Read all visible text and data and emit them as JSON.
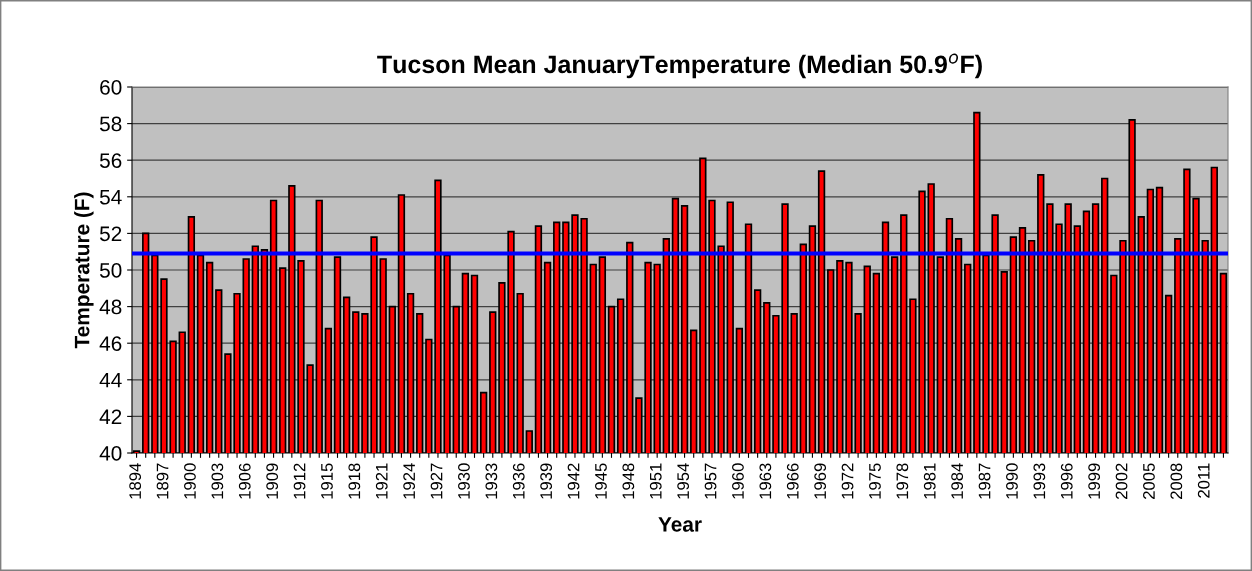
{
  "chart_data": {
    "type": "bar",
    "title": "Tucson Mean JanuaryTemperature (Median 50.9$^{o}$F)",
    "xlabel": "Year",
    "ylabel": "Temperature (F)",
    "categories": [
      "1894",
      null,
      null,
      "1897",
      null,
      null,
      "1900",
      null,
      null,
      "1903",
      null,
      null,
      "1906",
      null,
      null,
      "1909",
      null,
      null,
      "1912",
      null,
      null,
      "1915",
      null,
      null,
      "1918",
      null,
      null,
      "1921",
      null,
      null,
      "1924",
      null,
      null,
      "1927",
      null,
      null,
      "1930",
      null,
      null,
      "1933",
      null,
      null,
      "1936",
      null,
      null,
      "1939",
      null,
      null,
      "1942",
      null,
      null,
      "1945",
      null,
      null,
      "1948",
      null,
      null,
      "1951",
      null,
      null,
      "1954",
      null,
      null,
      "1957",
      null,
      null,
      "1960",
      null,
      null,
      "1963",
      null,
      null,
      "1966",
      null,
      null,
      "1969",
      null,
      null,
      "1972",
      null,
      null,
      "1975",
      null,
      null,
      "1978",
      null,
      null,
      "1981",
      null,
      null,
      "1984",
      null,
      null,
      "1987",
      null,
      null,
      "1990",
      null,
      null,
      "1993",
      null,
      null,
      "1996",
      null,
      null,
      "1999",
      null,
      null,
      "2002",
      null,
      null,
      "2005",
      null,
      null,
      "2008",
      null,
      null,
      "2011",
      null,
      null
    ],
    "series": [
      {
        "color": "#ff0000",
        "values": [
          40.1,
          52.0,
          50.8,
          49.5,
          46.1,
          46.6,
          52.9,
          50.8,
          50.4,
          48.9,
          45.4,
          48.7,
          50.6,
          51.3,
          51.1,
          53.8,
          50.1,
          54.6,
          50.5,
          44.8,
          53.8,
          46.8,
          50.7,
          48.5,
          47.7,
          47.6,
          51.8,
          50.6,
          48.0,
          54.1,
          48.7,
          47.6,
          46.2,
          54.9,
          50.8,
          48.0,
          49.8,
          49.7,
          43.3,
          47.7,
          49.3,
          52.1,
          48.7,
          41.2,
          52.4,
          50.4,
          52.6,
          52.6,
          53.0,
          52.8,
          50.3,
          50.7,
          48.0,
          48.4,
          51.5,
          43.0,
          50.4,
          50.3,
          51.7,
          53.9,
          53.5,
          46.7,
          56.1,
          53.8,
          51.3,
          53.7,
          46.8,
          52.5,
          48.9,
          48.2,
          47.5,
          53.6,
          47.6,
          51.4,
          52.4,
          55.4,
          50.0,
          50.5,
          50.4,
          47.6,
          50.2,
          49.8,
          52.6,
          50.7,
          53.0,
          48.4,
          54.3,
          54.7,
          50.7,
          52.8,
          51.7,
          50.3,
          58.6,
          50.8,
          53.0,
          49.9,
          51.8,
          52.3,
          51.6,
          55.2,
          53.6,
          52.5,
          53.6,
          52.4,
          53.2,
          53.6,
          55.0,
          49.7,
          51.6,
          58.2,
          52.9,
          54.4,
          54.5,
          48.6,
          51.7,
          55.5,
          53.9,
          51.6,
          55.6,
          49.8
        ]
      }
    ],
    "ylim": [
      40,
      60
    ],
    "yticks": [
      40,
      42,
      44,
      46,
      48,
      50,
      52,
      54,
      56,
      58,
      60
    ],
    "grid": "y",
    "ref_lines": [
      {
        "axis": "y",
        "value": 50.9,
        "color": "#0000ff"
      }
    ]
  }
}
